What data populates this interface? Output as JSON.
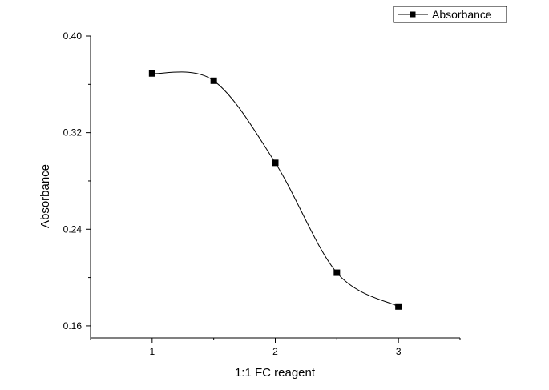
{
  "chart_data": {
    "type": "line",
    "title": "",
    "xlabel": "1:1 FC reagent",
    "ylabel": "Absorbance",
    "xlim": [
      0.5,
      3.5
    ],
    "ylim": [
      0.15,
      0.4
    ],
    "x_ticks": [
      1,
      2,
      3
    ],
    "x_tick_labels": [
      "1",
      "2",
      "3"
    ],
    "y_ticks": [
      0.16,
      0.24,
      0.32,
      0.4
    ],
    "y_tick_labels": [
      "0.16",
      "0.24",
      "0.32",
      "0.40"
    ],
    "grid": false,
    "legend_position": "top-right",
    "series": [
      {
        "name": "Absorbance",
        "marker": "square",
        "color": "#000000",
        "smooth": true,
        "x": [
          1,
          1.5,
          2,
          2.5,
          3
        ],
        "y": [
          0.369,
          0.363,
          0.295,
          0.204,
          0.176
        ]
      }
    ]
  }
}
